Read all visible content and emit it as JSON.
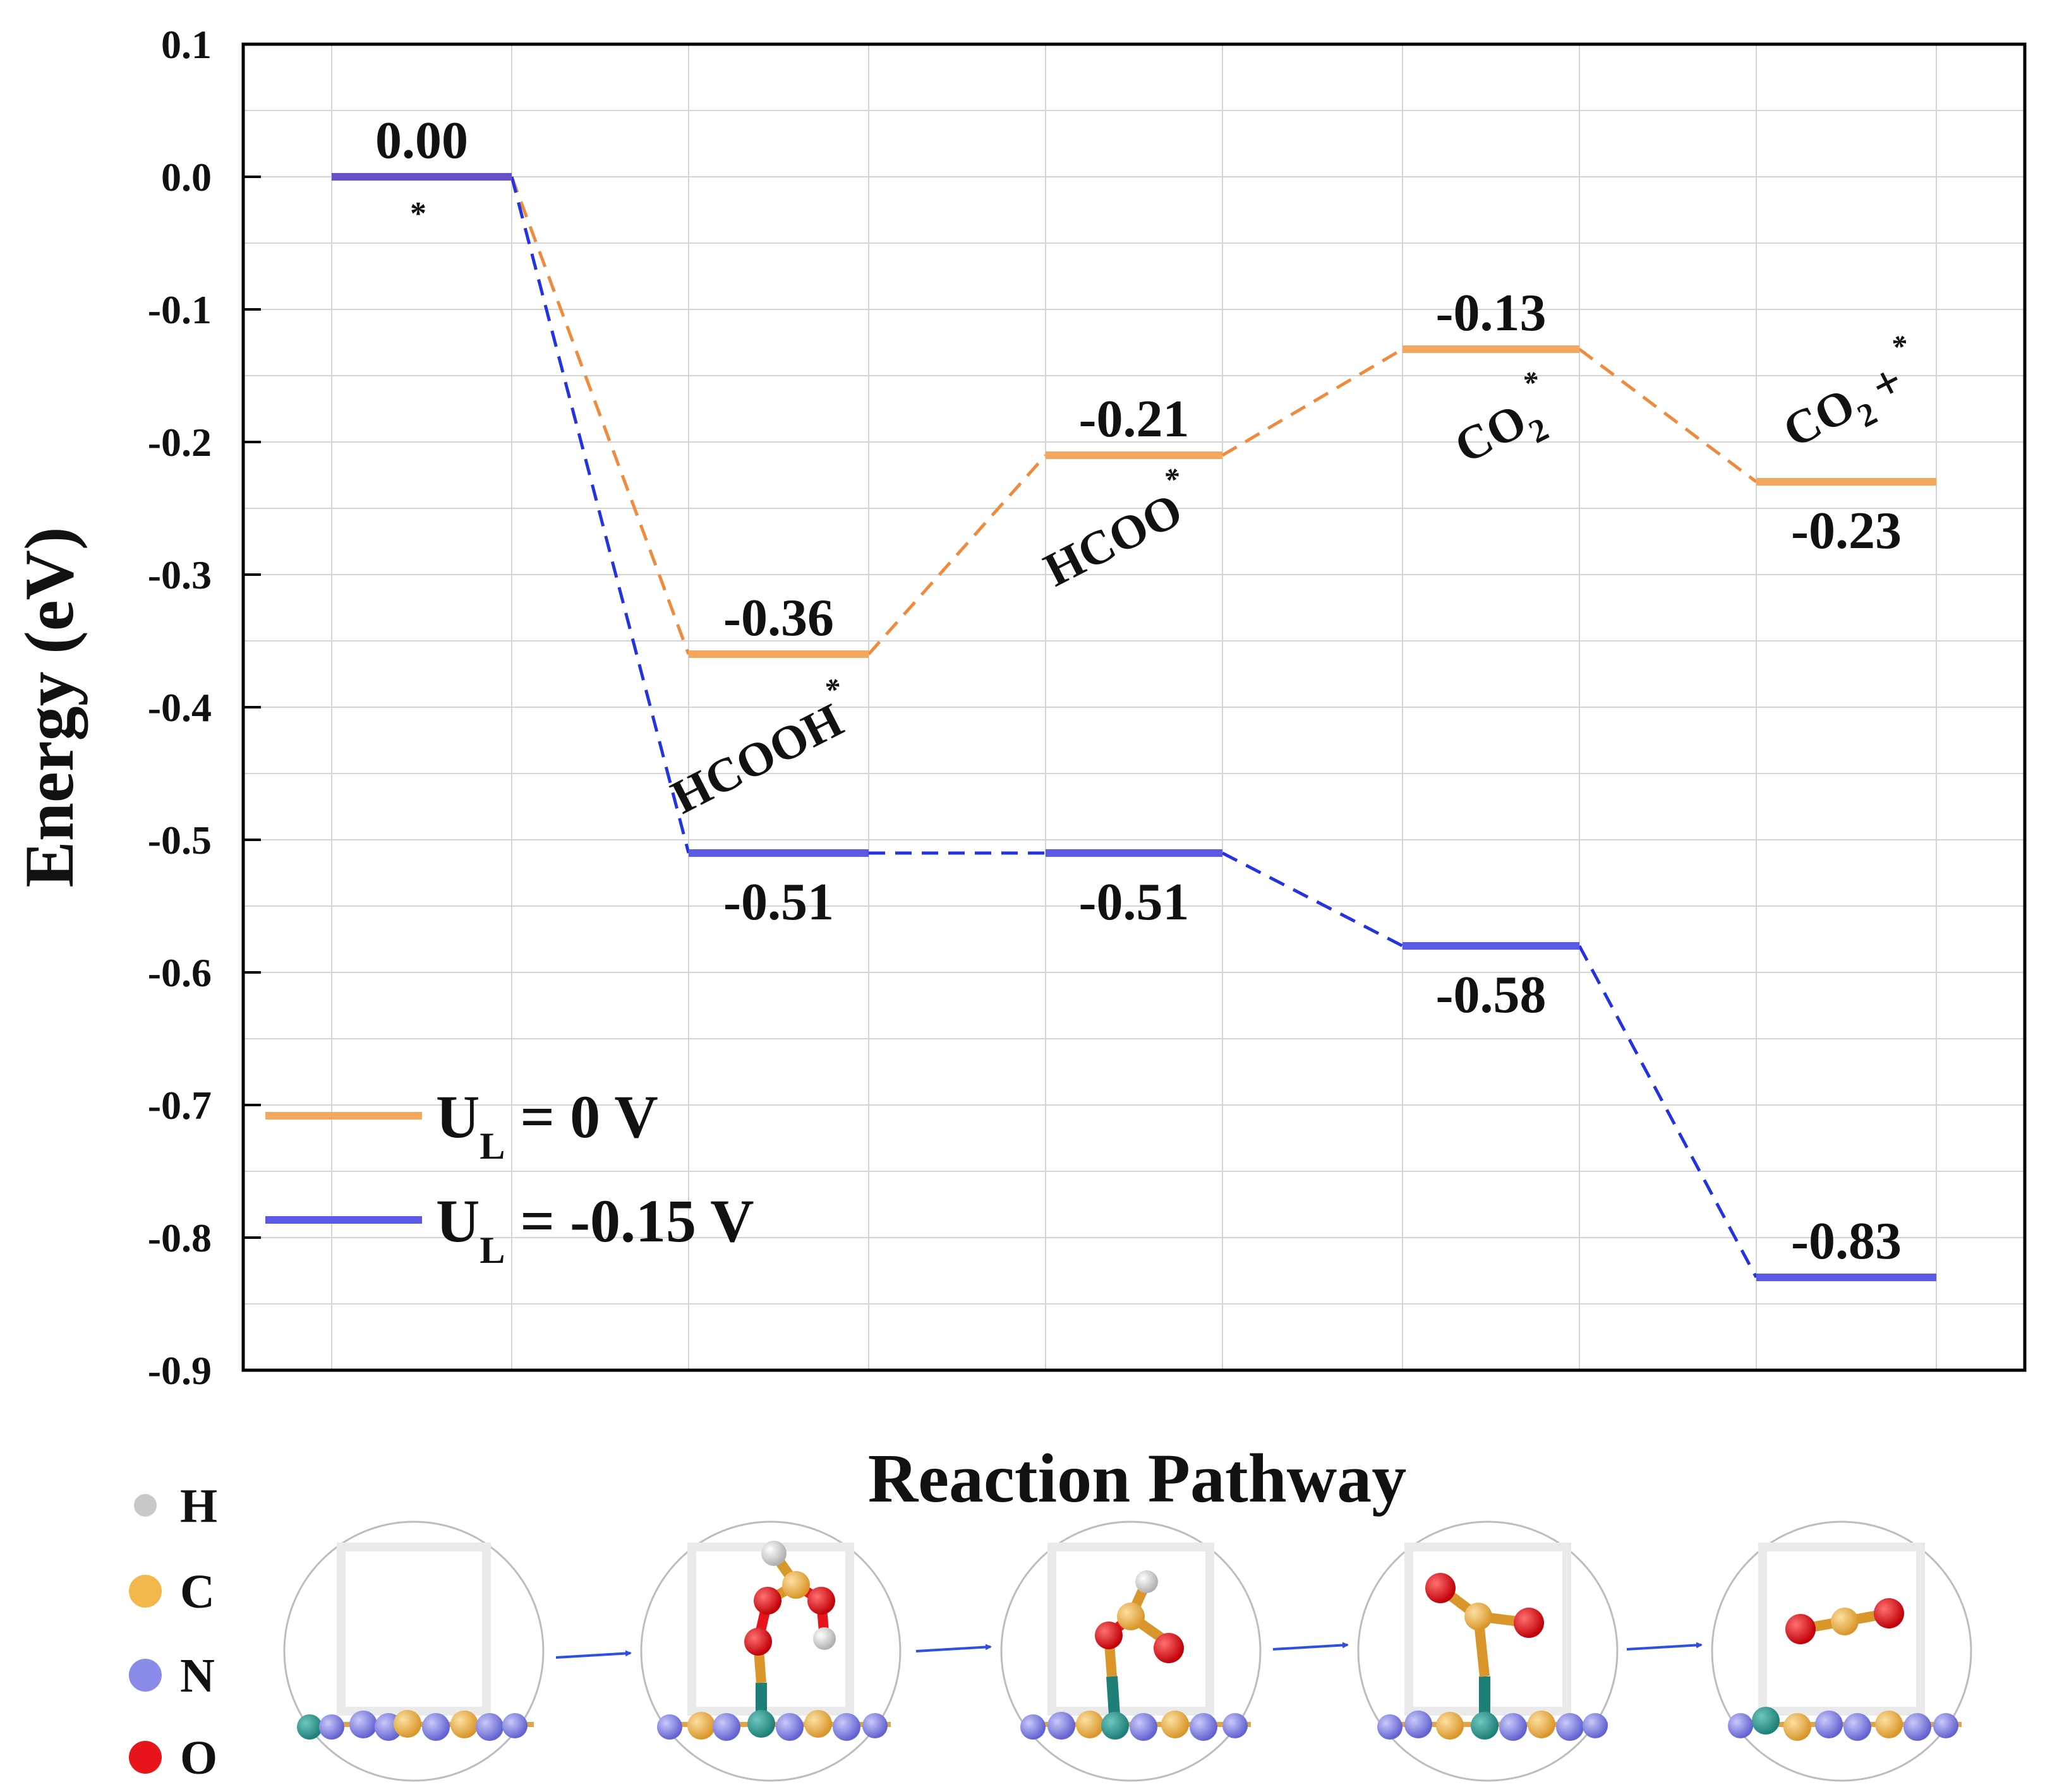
{
  "chart_data": {
    "type": "line",
    "title": "",
    "xlabel": "Reaction Pathway",
    "ylabel": "Energy (eV)",
    "ylim": [
      -0.9,
      0.1
    ],
    "yticks": [
      "0.1",
      "0.0",
      "-0.1",
      "-0.2",
      "-0.3",
      "-0.4",
      "-0.5",
      "-0.6",
      "-0.7",
      "-0.8",
      "-0.9"
    ],
    "grid": true,
    "steps": [
      "*",
      "HCOOH*",
      "HCOO*",
      "CO2*",
      "CO2 + *"
    ],
    "step_labels": [
      {
        "main": "*",
        "sub": "",
        "sup": ""
      },
      {
        "main": "HCOOH",
        "sub": "",
        "sup": "*"
      },
      {
        "main": "HCOO",
        "sub": "",
        "sup": "*"
      },
      {
        "main": "CO",
        "sub": "2",
        "sup": "*"
      },
      {
        "main": "CO",
        "sub": "2",
        "sup": "*",
        "plus": "+"
      }
    ],
    "series": [
      {
        "name": "U_L = 0 V",
        "legend_main": "U",
        "legend_sub": "L",
        "legend_rest": " = 0 V",
        "color": "#F4A85E",
        "values": [
          0.0,
          -0.36,
          -0.21,
          -0.13,
          -0.23
        ],
        "labels": [
          "0.00",
          "-0.36",
          "-0.21",
          "-0.13",
          "-0.23"
        ]
      },
      {
        "name": "U_L = -0.15 V",
        "legend_main": "U",
        "legend_sub": "L",
        "legend_rest": " = -0.15 V",
        "color": "#5A5AE6",
        "values": [
          0.0,
          -0.51,
          -0.51,
          -0.58,
          -0.83
        ],
        "labels": [
          "0.00",
          "-0.51",
          "-0.51",
          "-0.58",
          "-0.83"
        ]
      }
    ],
    "overlap_color": "#6A4FC8",
    "connector_colors": [
      "#F08A3C",
      "#2233E0"
    ],
    "elements_key": [
      {
        "symbol": "H",
        "color": "#C9C9C9"
      },
      {
        "symbol": "C",
        "color": "#F2B84B"
      },
      {
        "symbol": "N",
        "color": "#8A8AE8"
      },
      {
        "symbol": "O",
        "color": "#E8141B"
      }
    ]
  }
}
